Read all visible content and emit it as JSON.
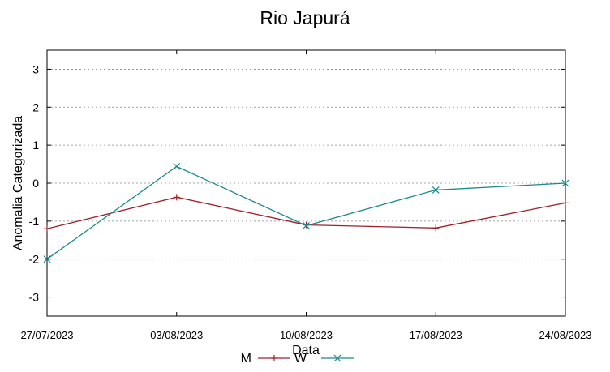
{
  "chart_data": {
    "type": "line",
    "title": "Rio Japurá",
    "xlabel": "Data",
    "ylabel": "Anomalia Categorizada",
    "categories": [
      "27/07/2023",
      "03/08/2023",
      "10/08/2023",
      "17/08/2023",
      "24/08/2023"
    ],
    "ylim": [
      -3.5,
      3.5
    ],
    "yticks": [
      "3",
      "2",
      "1",
      "0",
      "-1",
      "-2",
      "-3"
    ],
    "grid": true,
    "legend_position": "bottom-center",
    "series": [
      {
        "name": "M",
        "values": [
          -1.2,
          -0.37,
          -1.1,
          -1.18,
          -0.52
        ],
        "color": "#a0202a",
        "marker": "plus"
      },
      {
        "name": "W",
        "values": [
          -2.0,
          0.44,
          -1.12,
          -0.18,
          0.0
        ],
        "color": "#1a8a8a",
        "marker": "cross"
      }
    ]
  }
}
